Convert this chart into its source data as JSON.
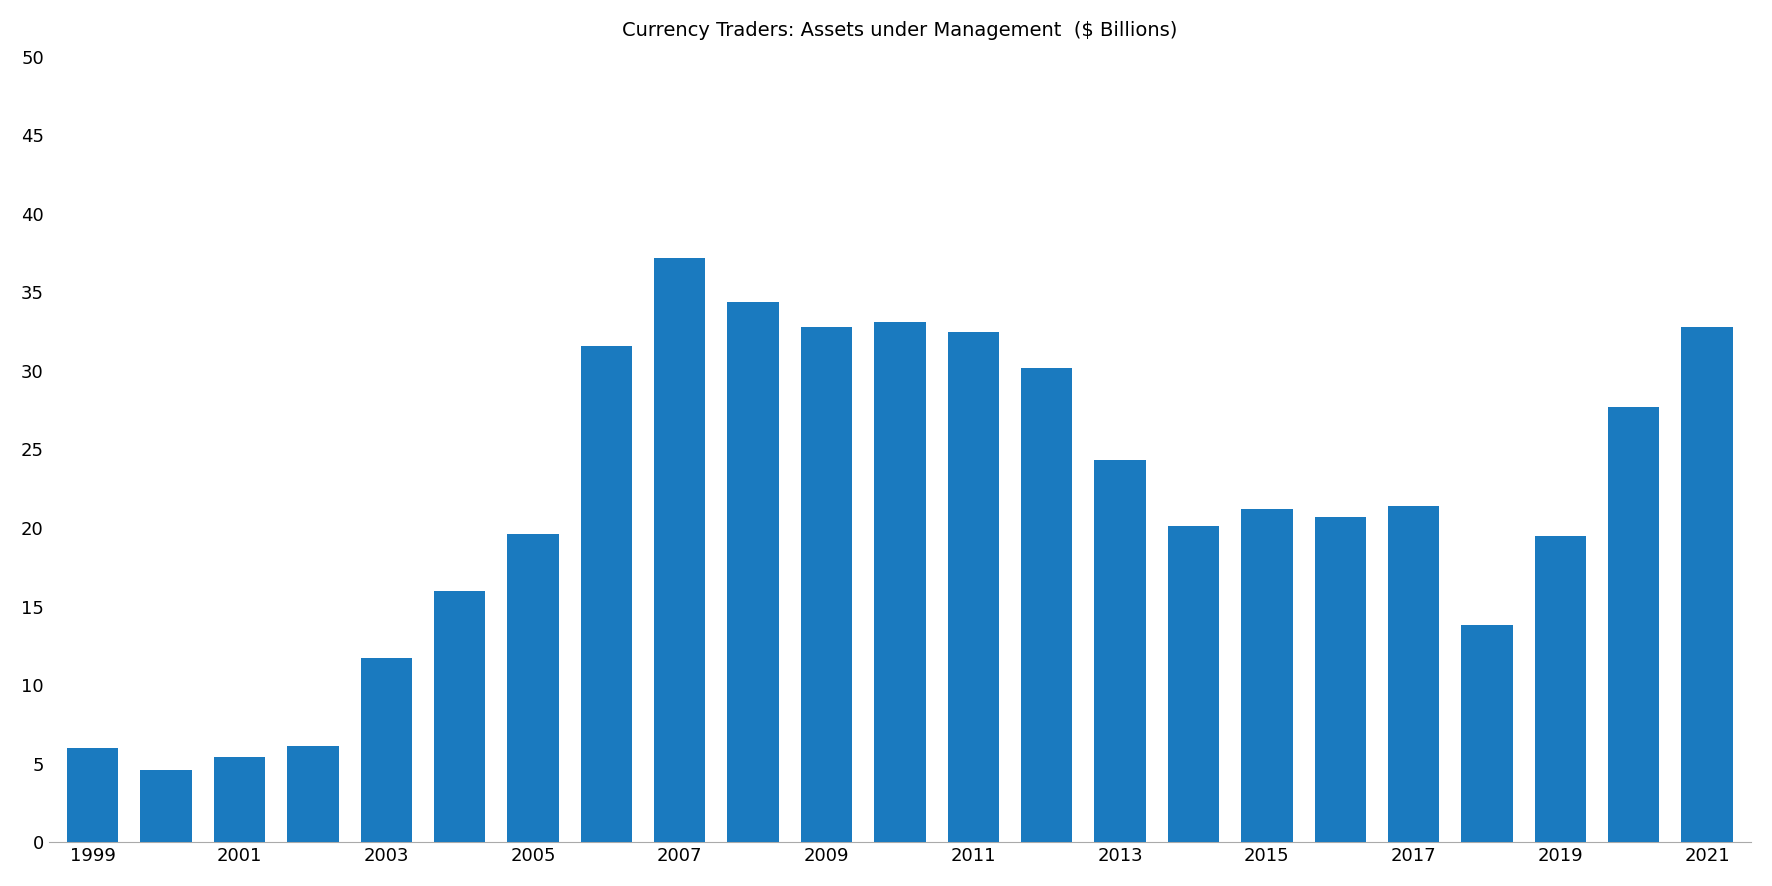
{
  "title": "Currency Traders: Assets under Management  ($ Billions)",
  "years": [
    1999,
    2000,
    2001,
    2002,
    2003,
    2004,
    2005,
    2006,
    2007,
    2008,
    2009,
    2010,
    2011,
    2012,
    2013,
    2014,
    2015,
    2016,
    2017,
    2018,
    2019,
    2020,
    2021
  ],
  "values": [
    6.0,
    4.6,
    5.4,
    6.1,
    11.7,
    16.0,
    19.6,
    31.6,
    37.2,
    34.4,
    32.8,
    33.1,
    32.5,
    30.2,
    24.3,
    20.1,
    21.2,
    20.7,
    21.4,
    13.8,
    19.5,
    27.7,
    32.8
  ],
  "xtick_labels": [
    "1999",
    "",
    "2001",
    "",
    "2003",
    "",
    "2005",
    "",
    "2007",
    "",
    "2009",
    "",
    "2011",
    "",
    "2013",
    "",
    "2015",
    "",
    "2017",
    "",
    "2019",
    "",
    "2021"
  ],
  "bar_color": "#1a7abf",
  "ylim": [
    0,
    50
  ],
  "yticks": [
    0,
    5,
    10,
    15,
    20,
    25,
    30,
    35,
    40,
    45,
    50
  ],
  "title_fontsize": 14,
  "background_color": "#ffffff",
  "bar_width": 0.7
}
